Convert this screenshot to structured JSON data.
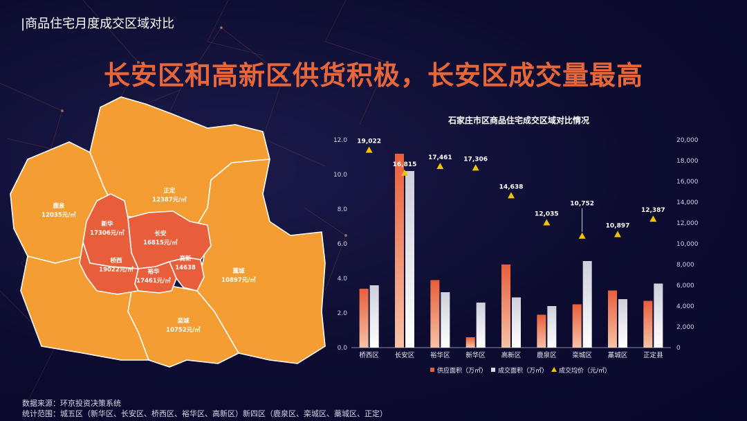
{
  "section_title": "|商品住宅月度成交区域对比",
  "headline": "长安区和高新区供货积极，长安区成交量最高",
  "map": {
    "districts": [
      {
        "name": "鹿泉",
        "price": "12035元/㎡"
      },
      {
        "name": "正定",
        "price": "12387元/㎡"
      },
      {
        "name": "新华",
        "price": "17306元/㎡"
      },
      {
        "name": "长安",
        "price": "16815元/㎡"
      },
      {
        "name": "桥西",
        "price": "19022元/㎡"
      },
      {
        "name": "高新",
        "price": "14638"
      },
      {
        "name": "裕华",
        "price": "17461元/㎡"
      },
      {
        "name": "藁城",
        "price": "10897元/㎡"
      },
      {
        "name": "栾城",
        "price": "10752元/㎡"
      }
    ],
    "colors": {
      "outer": "#f49d33",
      "inner": "#e85e3a"
    }
  },
  "chart_data": {
    "type": "bar",
    "title": "石家庄市区商品住宅成交区域对比情况",
    "categories": [
      "桥西区",
      "长安区",
      "裕华区",
      "新华区",
      "高新区",
      "鹿泉区",
      "栾城区",
      "藁城区",
      "正定县"
    ],
    "series": [
      {
        "name": "供应面积（万㎡）",
        "type": "bar",
        "axis": "left",
        "color": "#e85e3a",
        "values": [
          3.4,
          11.2,
          3.9,
          0.6,
          4.8,
          1.9,
          2.5,
          3.3,
          2.7
        ]
      },
      {
        "name": "成交面积（万㎡）",
        "type": "bar",
        "axis": "left",
        "color": "#d9d9e6",
        "values": [
          3.6,
          10.2,
          3.2,
          2.6,
          2.9,
          2.4,
          5.0,
          2.8,
          3.7
        ]
      },
      {
        "name": "成交均价（元/㎡）",
        "type": "scatter",
        "axis": "right",
        "color": "#f2c200",
        "values": [
          19022,
          16815,
          17461,
          17306,
          14638,
          12035,
          10752,
          10897,
          12387
        ]
      }
    ],
    "data_labels": [
      "19,022",
      "16,815",
      "17,461",
      "17,306",
      "14,638",
      "12,035",
      "10,752",
      "10,897",
      "12,387"
    ],
    "ylim_left": [
      0,
      12
    ],
    "yticks_left": [
      "0.0",
      "2.0",
      "4.0",
      "6.0",
      "8.0",
      "10.0",
      "12.0"
    ],
    "ylim_right": [
      0,
      20000
    ],
    "yticks_right": [
      "0",
      "2,000",
      "4,000",
      "6,000",
      "8,000",
      "10,000",
      "12,000",
      "14,000",
      "16,000",
      "18,000",
      "20,000"
    ],
    "legend_position": "bottom",
    "grid": false
  },
  "footer": {
    "source": "数据来源：环京投资决策系统",
    "scope": "统计范围：城五区（新华区、长安区、桥西区、裕华区、高新区）新四区（鹿泉区、栾城区、藁城区、正定）"
  }
}
